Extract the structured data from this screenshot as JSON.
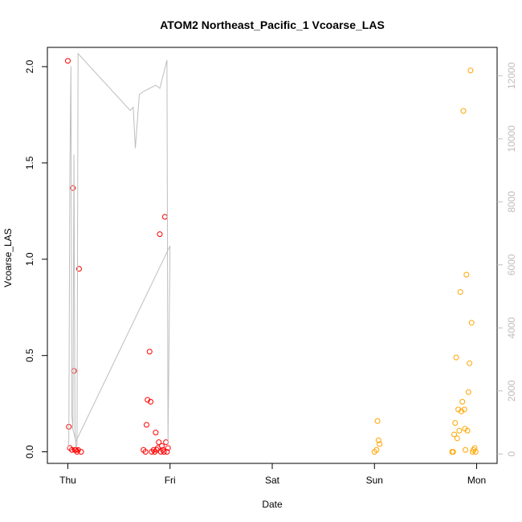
{
  "chart_data": {
    "type": "scatter",
    "title": "ATOM2 Northeast_Pacific_1 Vcoarse_LAS",
    "xlabel": "Date",
    "ylabel": "Vcoarse_LAS",
    "x_ticks": [
      {
        "label": "Thu",
        "value": 0
      },
      {
        "label": "Fri",
        "value": 1
      },
      {
        "label": "Sat",
        "value": 2
      },
      {
        "label": "Sun",
        "value": 3
      },
      {
        "label": "Mon",
        "value": 4
      }
    ],
    "xlim": [
      -0.2,
      4.2
    ],
    "ylim": [
      -0.06,
      2.1
    ],
    "y_ticks": [
      0.0,
      0.5,
      1.0,
      1.5,
      2.0
    ],
    "y_tick_labels": [
      "0.0",
      "0.5",
      "1.0",
      "1.5",
      "2.0"
    ],
    "right_axis": {
      "ylim": [
        -300,
        12900
      ],
      "ticks": [
        0,
        2000,
        4000,
        6000,
        8000,
        10000,
        12000
      ],
      "tick_labels": [
        "0",
        "2000",
        "4000",
        "6000",
        "8000",
        "10000",
        "12000"
      ],
      "color": "#bebebe"
    },
    "grid": false,
    "series": [
      {
        "color": "#ff0000",
        "marker": "open-circle",
        "points": [
          [
            0.0,
            2.03
          ],
          [
            0.01,
            0.13
          ],
          [
            0.02,
            0.02
          ],
          [
            0.04,
            0.01
          ],
          [
            0.05,
            1.37
          ],
          [
            0.06,
            0.42
          ],
          [
            0.07,
            0.01
          ],
          [
            0.08,
            0.01
          ],
          [
            0.09,
            0.0
          ],
          [
            0.1,
            0.01
          ],
          [
            0.11,
            0.95
          ],
          [
            0.13,
            0.0
          ],
          [
            0.74,
            0.01
          ],
          [
            0.76,
            0.0
          ],
          [
            0.77,
            0.14
          ],
          [
            0.78,
            0.27
          ],
          [
            0.8,
            0.52
          ],
          [
            0.81,
            0.26
          ],
          [
            0.82,
            0.0
          ],
          [
            0.84,
            0.01
          ],
          [
            0.85,
            0.0
          ],
          [
            0.86,
            0.1
          ],
          [
            0.87,
            0.01
          ],
          [
            0.88,
            0.02
          ],
          [
            0.89,
            0.05
          ],
          [
            0.9,
            1.13
          ],
          [
            0.91,
            0.0
          ],
          [
            0.92,
            0.03
          ],
          [
            0.93,
            0.01
          ],
          [
            0.94,
            0.0
          ],
          [
            0.95,
            1.22
          ],
          [
            0.96,
            0.05
          ],
          [
            0.97,
            0.0
          ],
          [
            0.98,
            0.02
          ]
        ]
      },
      {
        "color": "#ffa500",
        "marker": "open-circle",
        "points": [
          [
            3.0,
            0.0
          ],
          [
            3.02,
            0.01
          ],
          [
            3.03,
            0.16
          ],
          [
            3.04,
            0.06
          ],
          [
            3.05,
            0.04
          ],
          [
            3.76,
            0.0
          ],
          [
            3.77,
            0.0
          ],
          [
            3.78,
            0.09
          ],
          [
            3.79,
            0.15
          ],
          [
            3.8,
            0.49
          ],
          [
            3.81,
            0.07
          ],
          [
            3.82,
            0.22
          ],
          [
            3.83,
            0.11
          ],
          [
            3.84,
            0.83
          ],
          [
            3.85,
            0.21
          ],
          [
            3.86,
            0.26
          ],
          [
            3.87,
            1.77
          ],
          [
            3.88,
            0.22
          ],
          [
            3.89,
            0.01
          ],
          [
            3.9,
            0.92
          ],
          [
            3.91,
            0.11
          ],
          [
            3.92,
            0.31
          ],
          [
            3.93,
            0.46
          ],
          [
            3.94,
            1.98
          ],
          [
            3.95,
            0.67
          ],
          [
            3.96,
            0.0
          ],
          [
            3.97,
            0.01
          ],
          [
            3.98,
            0.02
          ],
          [
            3.99,
            0.0
          ],
          [
            3.885,
            0.12
          ]
        ]
      },
      {
        "color": "#bebebe",
        "marker": "line",
        "axis": "right",
        "points": [
          [
            0.0,
            200
          ],
          [
            0.01,
            400
          ],
          [
            0.02,
            9000
          ],
          [
            0.03,
            12300
          ],
          [
            0.04,
            1200
          ],
          [
            0.05,
            800
          ],
          [
            0.06,
            9500
          ],
          [
            0.07,
            800
          ],
          [
            0.08,
            200
          ],
          [
            0.09,
            300
          ],
          [
            0.1,
            12700
          ],
          [
            0.61,
            10900
          ],
          [
            0.64,
            11000
          ],
          [
            0.66,
            9700
          ],
          [
            0.7,
            11400
          ],
          [
            0.74,
            11500
          ],
          [
            0.8,
            11600
          ],
          [
            0.86,
            11700
          ],
          [
            0.9,
            11600
          ],
          [
            0.97,
            12500
          ],
          [
            0.98,
            300
          ],
          [
            1.0,
            6600
          ],
          [
            0.08,
            400
          ],
          [
            0.04,
            900
          ]
        ]
      }
    ]
  }
}
